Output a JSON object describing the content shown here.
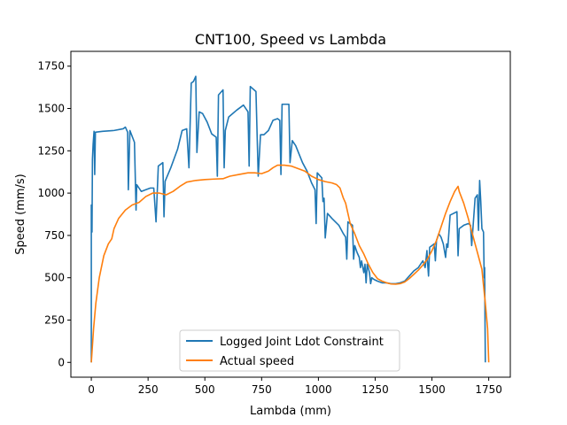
{
  "chart_data": {
    "type": "line",
    "title": "CNT100, Speed vs Lambda",
    "xlabel": "Lambda (mm)",
    "ylabel": "Speed (mm/s)",
    "xlim": [
      -90,
      1845
    ],
    "ylim": [
      -87.5,
      1837.5
    ],
    "xticks": [
      0,
      250,
      500,
      750,
      1000,
      1250,
      1500,
      1750
    ],
    "yticks": [
      0,
      250,
      500,
      750,
      1000,
      1250,
      1500,
      1750
    ],
    "grid": false,
    "legend_position": "lower center",
    "series": [
      {
        "name": "Logged Joint Ldot Constraint",
        "color": "#1f77b4",
        "points": [
          [
            0,
            0
          ],
          [
            0,
            930
          ],
          [
            3,
            770
          ],
          [
            5,
            1200
          ],
          [
            8,
            1290
          ],
          [
            12,
            1365
          ],
          [
            15,
            1110
          ],
          [
            18,
            1360
          ],
          [
            50,
            1365
          ],
          [
            100,
            1370
          ],
          [
            140,
            1380
          ],
          [
            150,
            1390
          ],
          [
            160,
            1360
          ],
          [
            163,
            1020
          ],
          [
            170,
            1370
          ],
          [
            190,
            1300
          ],
          [
            197,
            900
          ],
          [
            200,
            1050
          ],
          [
            220,
            1010
          ],
          [
            240,
            1020
          ],
          [
            260,
            1030
          ],
          [
            275,
            1030
          ],
          [
            285,
            830
          ],
          [
            295,
            1160
          ],
          [
            315,
            1180
          ],
          [
            320,
            860
          ],
          [
            325,
            1070
          ],
          [
            350,
            1150
          ],
          [
            380,
            1260
          ],
          [
            400,
            1370
          ],
          [
            420,
            1380
          ],
          [
            430,
            1150
          ],
          [
            440,
            1650
          ],
          [
            450,
            1660
          ],
          [
            460,
            1690
          ],
          [
            465,
            1240
          ],
          [
            475,
            1480
          ],
          [
            490,
            1470
          ],
          [
            510,
            1420
          ],
          [
            530,
            1350
          ],
          [
            550,
            1330
          ],
          [
            555,
            1100
          ],
          [
            560,
            1580
          ],
          [
            580,
            1610
          ],
          [
            585,
            1150
          ],
          [
            590,
            1370
          ],
          [
            605,
            1450
          ],
          [
            640,
            1490
          ],
          [
            670,
            1520
          ],
          [
            690,
            1480
          ],
          [
            695,
            1160
          ],
          [
            700,
            1630
          ],
          [
            725,
            1600
          ],
          [
            735,
            1100
          ],
          [
            745,
            1345
          ],
          [
            760,
            1345
          ],
          [
            780,
            1370
          ],
          [
            800,
            1430
          ],
          [
            820,
            1440
          ],
          [
            830,
            1430
          ],
          [
            835,
            1110
          ],
          [
            840,
            1525
          ],
          [
            870,
            1525
          ],
          [
            875,
            1180
          ],
          [
            885,
            1310
          ],
          [
            900,
            1280
          ],
          [
            930,
            1180
          ],
          [
            950,
            1130
          ],
          [
            970,
            1060
          ],
          [
            985,
            1020
          ],
          [
            990,
            820
          ],
          [
            995,
            1120
          ],
          [
            1015,
            1090
          ],
          [
            1020,
            950
          ],
          [
            1025,
            970
          ],
          [
            1030,
            735
          ],
          [
            1040,
            880
          ],
          [
            1060,
            850
          ],
          [
            1090,
            810
          ],
          [
            1110,
            760
          ],
          [
            1120,
            740
          ],
          [
            1125,
            610
          ],
          [
            1130,
            830
          ],
          [
            1150,
            810
          ],
          [
            1155,
            610
          ],
          [
            1160,
            690
          ],
          [
            1170,
            650
          ],
          [
            1180,
            620
          ],
          [
            1185,
            560
          ],
          [
            1190,
            600
          ],
          [
            1200,
            530
          ],
          [
            1205,
            580
          ],
          [
            1210,
            470
          ],
          [
            1215,
            580
          ],
          [
            1225,
            530
          ],
          [
            1230,
            465
          ],
          [
            1235,
            500
          ],
          [
            1245,
            490
          ],
          [
            1260,
            480
          ],
          [
            1280,
            470
          ],
          [
            1300,
            470
          ],
          [
            1320,
            465
          ],
          [
            1340,
            465
          ],
          [
            1360,
            470
          ],
          [
            1380,
            480
          ],
          [
            1400,
            510
          ],
          [
            1420,
            540
          ],
          [
            1440,
            560
          ],
          [
            1460,
            600
          ],
          [
            1470,
            560
          ],
          [
            1478,
            660
          ],
          [
            1480,
            600
          ],
          [
            1485,
            510
          ],
          [
            1490,
            680
          ],
          [
            1500,
            690
          ],
          [
            1510,
            700
          ],
          [
            1515,
            600
          ],
          [
            1520,
            720
          ],
          [
            1530,
            760
          ],
          [
            1540,
            740
          ],
          [
            1550,
            700
          ],
          [
            1560,
            620
          ],
          [
            1565,
            700
          ],
          [
            1570,
            680
          ],
          [
            1580,
            870
          ],
          [
            1610,
            890
          ],
          [
            1615,
            630
          ],
          [
            1620,
            790
          ],
          [
            1640,
            810
          ],
          [
            1660,
            820
          ],
          [
            1670,
            810
          ],
          [
            1675,
            690
          ],
          [
            1690,
            970
          ],
          [
            1700,
            990
          ],
          [
            1705,
            780
          ],
          [
            1710,
            1075
          ],
          [
            1715,
            950
          ],
          [
            1720,
            790
          ],
          [
            1727,
            770
          ],
          [
            1730,
            500
          ],
          [
            1732,
            560
          ],
          [
            1735,
            0
          ]
        ]
      },
      {
        "name": "Actual speed",
        "color": "#ff7f0e",
        "points": [
          [
            0,
            0
          ],
          [
            3,
            60
          ],
          [
            10,
            200
          ],
          [
            20,
            350
          ],
          [
            35,
            500
          ],
          [
            55,
            630
          ],
          [
            75,
            700
          ],
          [
            90,
            730
          ],
          [
            100,
            790
          ],
          [
            120,
            850
          ],
          [
            150,
            900
          ],
          [
            180,
            930
          ],
          [
            210,
            945
          ],
          [
            240,
            980
          ],
          [
            270,
            1000
          ],
          [
            300,
            1000
          ],
          [
            330,
            990
          ],
          [
            360,
            1010
          ],
          [
            390,
            1040
          ],
          [
            420,
            1065
          ],
          [
            460,
            1075
          ],
          [
            500,
            1080
          ],
          [
            540,
            1083
          ],
          [
            580,
            1085
          ],
          [
            610,
            1100
          ],
          [
            650,
            1110
          ],
          [
            690,
            1120
          ],
          [
            720,
            1120
          ],
          [
            750,
            1115
          ],
          [
            780,
            1130
          ],
          [
            800,
            1150
          ],
          [
            820,
            1165
          ],
          [
            850,
            1165
          ],
          [
            880,
            1160
          ],
          [
            910,
            1145
          ],
          [
            940,
            1130
          ],
          [
            970,
            1100
          ],
          [
            1000,
            1080
          ],
          [
            1030,
            1068
          ],
          [
            1060,
            1060
          ],
          [
            1080,
            1050
          ],
          [
            1095,
            1030
          ],
          [
            1110,
            970
          ],
          [
            1120,
            940
          ],
          [
            1130,
            880
          ],
          [
            1140,
            820
          ],
          [
            1160,
            760
          ],
          [
            1180,
            690
          ],
          [
            1200,
            640
          ],
          [
            1220,
            580
          ],
          [
            1240,
            530
          ],
          [
            1260,
            495
          ],
          [
            1280,
            480
          ],
          [
            1300,
            470
          ],
          [
            1320,
            463
          ],
          [
            1340,
            462
          ],
          [
            1360,
            465
          ],
          [
            1380,
            475
          ],
          [
            1400,
            495
          ],
          [
            1420,
            520
          ],
          [
            1440,
            545
          ],
          [
            1460,
            575
          ],
          [
            1480,
            610
          ],
          [
            1500,
            660
          ],
          [
            1520,
            720
          ],
          [
            1540,
            800
          ],
          [
            1560,
            880
          ],
          [
            1580,
            950
          ],
          [
            1600,
            1010
          ],
          [
            1615,
            1040
          ],
          [
            1620,
            1010
          ],
          [
            1640,
            940
          ],
          [
            1660,
            850
          ],
          [
            1680,
            750
          ],
          [
            1700,
            650
          ],
          [
            1720,
            550
          ],
          [
            1735,
            350
          ],
          [
            1745,
            200
          ],
          [
            1750,
            0
          ]
        ]
      }
    ]
  }
}
